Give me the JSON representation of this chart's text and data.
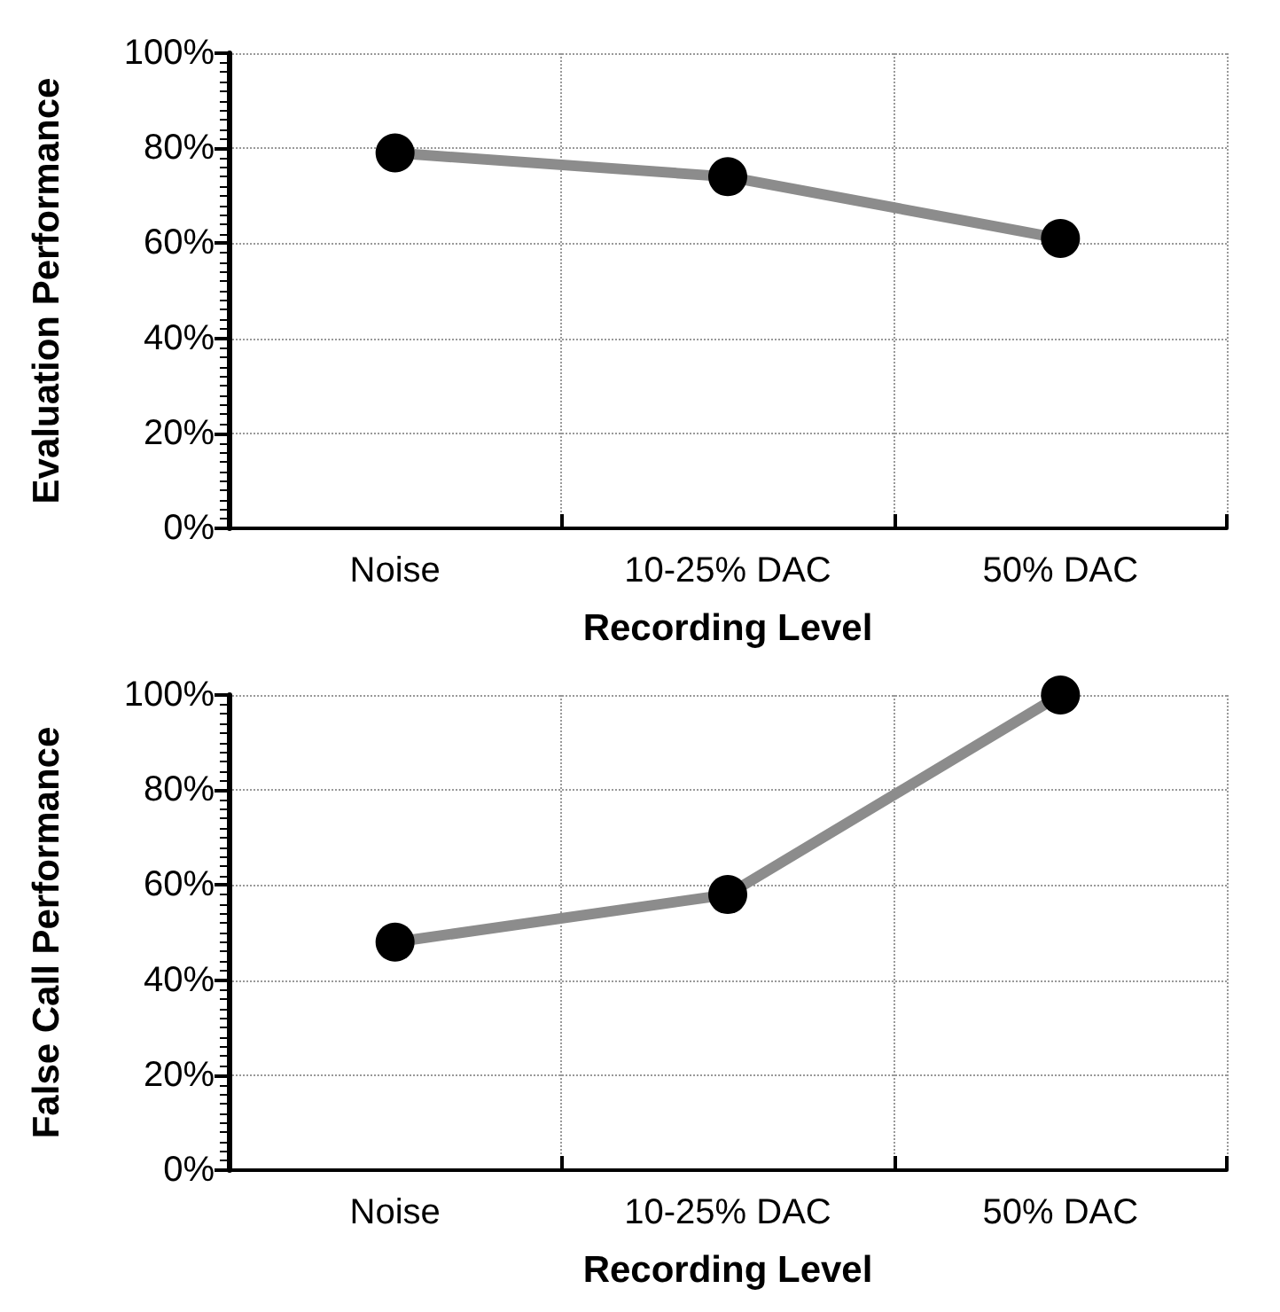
{
  "chart_data": [
    {
      "type": "line",
      "xlabel": "Recording Level",
      "ylabel": "Evaluation Performance",
      "categories": [
        "Noise",
        "10-25% DAC",
        "50% DAC"
      ],
      "series": [
        {
          "color": "#8c8c8c",
          "values": [
            79,
            74,
            61
          ]
        }
      ],
      "ylim": [
        0,
        100
      ],
      "yticks": [
        {
          "value": 0,
          "label": "0%"
        },
        {
          "value": 20,
          "label": "20%"
        },
        {
          "value": 40,
          "label": "40%"
        },
        {
          "value": 60,
          "label": "60%"
        },
        {
          "value": 80,
          "label": "80%"
        },
        {
          "value": 100,
          "label": "100%"
        }
      ],
      "grid": true,
      "marker": "circle",
      "line_style": "solid"
    },
    {
      "type": "line",
      "xlabel": "Recording Level",
      "ylabel": "False Call Performance",
      "categories": [
        "Noise",
        "10-25% DAC",
        "50% DAC"
      ],
      "series": [
        {
          "color": "#8c8c8c",
          "values": [
            48,
            58,
            100
          ]
        }
      ],
      "ylim": [
        0,
        100
      ],
      "yticks": [
        {
          "value": 0,
          "label": "0%"
        },
        {
          "value": 20,
          "label": "20%"
        },
        {
          "value": 40,
          "label": "40%"
        },
        {
          "value": 60,
          "label": "60%"
        },
        {
          "value": 80,
          "label": "80%"
        },
        {
          "value": 100,
          "label": "100%"
        }
      ],
      "grid": true,
      "marker": "circle",
      "line_style": "solid"
    }
  ]
}
